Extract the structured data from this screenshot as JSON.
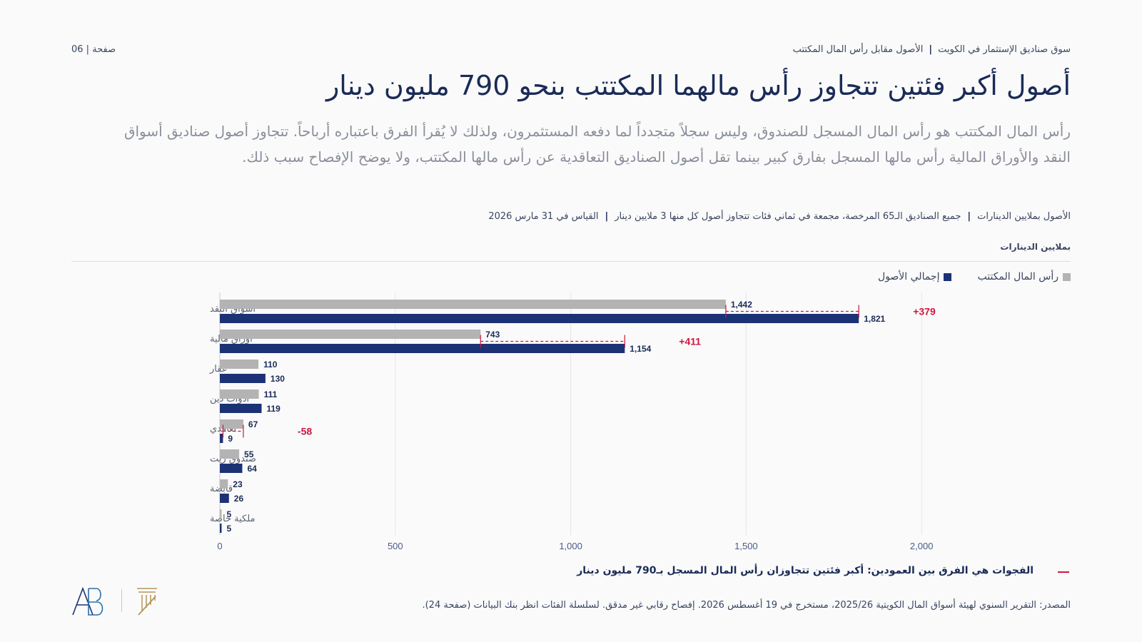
{
  "header": {
    "breadcrumb_main": "سوق صناديق الإستثمار في الكويت",
    "breadcrumb_sub": "الأصول مقابل رأس المال المكتتب",
    "page_label": "صفحة | 06"
  },
  "title": "أصول أكبر فئتين تتجاوز رأس مالهما المكتتب بنحو 790 مليون دينار",
  "subtitle": "رأس المال المكتتب هو رأس المال المسجل للصندوق، وليس سجلاً متجدداً لما دفعه المستثمرون، ولذلك لا يُقرأ الفرق باعتباره أرباحاً. تتجاوز أصول صناديق أسواق النقد والأوراق المالية رأس مالها المسجل بفارق كبير بينما تقل أصول الصناديق التعاقدية عن رأس مالها المكتتب، ولا يوضح الإفصاح سبب ذلك.",
  "meta": {
    "item1": "الأصول بملايين الدينارات",
    "item2": "جميع الصناديق الـ65 المرخصة، مجمعة في ثماني فئات تتجاوز أصول كل منها 3 ملايين دينار",
    "item3": "القياس في 31 مارس 2026"
  },
  "unit_label": "بملايين الدينارات",
  "colors": {
    "capital": "#b3b3b3",
    "assets": "#1b3275",
    "gap": "#d0153f",
    "text": "#1a2b57"
  },
  "chart_data": {
    "type": "bar",
    "orientation": "horizontal",
    "categories": [
      "أسواق النقد",
      "أوراق مالية",
      "عقار",
      "أدوات دين",
      "تعاقدي",
      "صندوق ريت",
      "قابضة",
      "ملكية خاصة"
    ],
    "series": [
      {
        "name": "رأس المال المكتتب",
        "values": [
          1442,
          743,
          110,
          111,
          67,
          55,
          23,
          5
        ],
        "labels": [
          "1,442",
          "743",
          "110",
          "111",
          "67",
          "55",
          "23",
          "5"
        ]
      },
      {
        "name": "إجمالي الأصول",
        "values": [
          1821,
          1154,
          130,
          119,
          9,
          64,
          26,
          5
        ],
        "labels": [
          "1,821",
          "1,154",
          "130",
          "119",
          "9",
          "64",
          "26",
          "5"
        ]
      }
    ],
    "gaps": [
      {
        "category": "أسواق النقد",
        "label": "+379"
      },
      {
        "category": "أوراق مالية",
        "label": "+411"
      },
      {
        "category": "تعاقدي",
        "label": "-58"
      }
    ],
    "xlim": [
      0,
      2400
    ],
    "xticks": [
      0,
      500,
      1000,
      1500,
      2000
    ],
    "xtick_labels": [
      "0",
      "500",
      "1,000",
      "1,500",
      "2,000"
    ],
    "grid": true,
    "legend": "top-right"
  },
  "note": "الفجوات هي الفرق بين العمودين: أكبر فئتين تتجاوزان رأس المال المسجل بـ790 مليون دينار",
  "source": "المصدر: التقرير السنوي لهيئة أسواق المال الكويتية 2025/26، مستخرج في 19 أغسطس 2026. إفصاح رقابي غير مدقق. لسلسلة الفئات انظر بنك البيانات (صفحة 24)."
}
